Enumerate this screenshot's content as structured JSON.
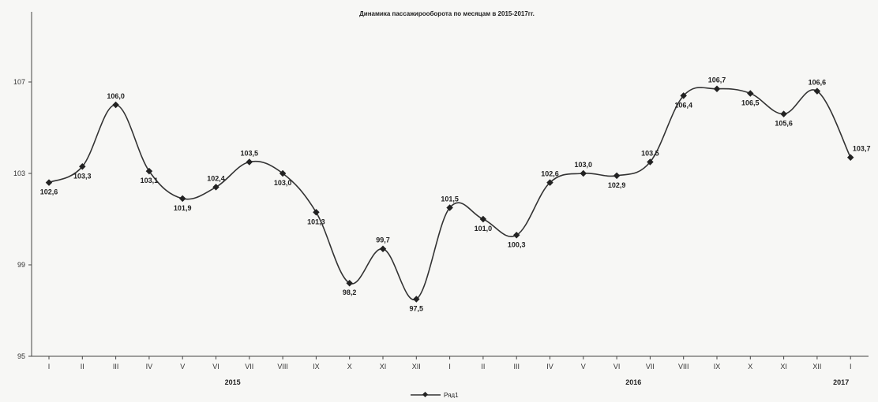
{
  "chart_data": {
    "type": "line",
    "title": "Динамика пассажирооборота по месяцам в 2015-2017гг.",
    "categories": [
      "I",
      "II",
      "III",
      "IV",
      "V",
      "VI",
      "VII",
      "VIII",
      "IX",
      "X",
      "XI",
      "XII",
      "I",
      "II",
      "III",
      "IV",
      "V",
      "VI",
      "VII",
      "VIII",
      "IX",
      "X",
      "XI",
      "XII",
      "I"
    ],
    "year_groups": [
      {
        "label": "2015",
        "start": 0,
        "end": 11
      },
      {
        "label": "2016",
        "start": 12,
        "end": 23
      },
      {
        "label": "2017",
        "start": 24,
        "end": 24
      }
    ],
    "series": [
      {
        "name": "Ряд1",
        "values": [
          102.6,
          103.3,
          106.0,
          103.1,
          101.9,
          102.4,
          103.5,
          103.0,
          101.3,
          98.2,
          99.7,
          97.5,
          101.5,
          101.0,
          100.3,
          102.6,
          103.0,
          102.9,
          103.5,
          106.4,
          106.7,
          106.5,
          105.6,
          106.6,
          103.7
        ],
        "labels": [
          "102,6",
          "103,3",
          "106,0",
          "103,1",
          "101,9",
          "102,4",
          "103,5",
          "103,0",
          "101,3",
          "98,2",
          "99,7",
          "97,5",
          "101,5",
          "101,0",
          "100,3",
          "102,6",
          "103,0",
          "102,9",
          "103,5",
          "106,4",
          "106,7",
          "106,5",
          "105,6",
          "106,6",
          "103,7"
        ]
      }
    ],
    "yticks": [
      95,
      99,
      103,
      107
    ],
    "ylim": [
      95,
      107
    ],
    "grid": false,
    "legend_position": "bottom",
    "colors": {
      "line": "#333333",
      "marker": "#222222"
    }
  }
}
